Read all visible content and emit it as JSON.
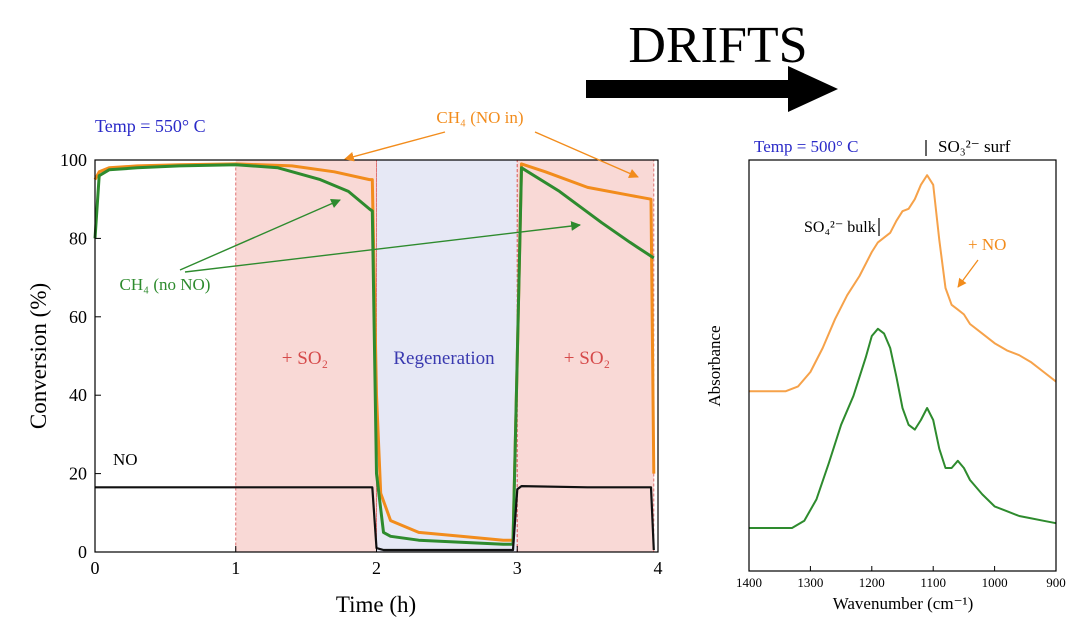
{
  "header": {
    "label": "DRIFTS"
  },
  "chart_data": [
    {
      "type": "line",
      "annotation_temp": "Temp = 550° C",
      "xlabel": "Time (h)",
      "ylabel": "Conversion (%)",
      "xlim": [
        0,
        4
      ],
      "ylim": [
        0,
        100
      ],
      "xticks": [
        "0",
        "1",
        "2",
        "3",
        "4"
      ],
      "yticks": [
        "0",
        "20",
        "40",
        "60",
        "80",
        "100"
      ],
      "regions": [
        {
          "label": "+ SO₂",
          "x": [
            1,
            2
          ],
          "color": "#f9d9d6"
        },
        {
          "label": "Regeneration",
          "x": [
            2,
            3
          ],
          "color": "#e6e8f5"
        },
        {
          "label": "+ SO₂",
          "x": [
            3,
            3.97
          ],
          "color": "#f9d9d6"
        }
      ],
      "annotations": [
        "CH₄ (NO in)",
        "CH₄ (no NO)",
        "NO"
      ],
      "series": [
        {
          "name": "CH₄ (NO in)",
          "color": "#f28c1c",
          "x": [
            0,
            0.03,
            0.1,
            0.3,
            0.6,
            1.0,
            1.4,
            1.7,
            1.95,
            1.97,
            2.0,
            2.03,
            2.1,
            2.3,
            2.6,
            2.9,
            2.97,
            3.0,
            3.03,
            3.2,
            3.5,
            3.8,
            3.95,
            3.97
          ],
          "y": [
            95,
            97,
            98,
            98.5,
            98.8,
            99,
            98.5,
            97,
            95,
            95,
            40,
            15,
            8,
            5,
            4,
            3,
            3,
            50,
            99,
            97,
            93,
            91,
            90,
            20
          ]
        },
        {
          "name": "CH₄ (no NO)",
          "color": "#2e8b2e",
          "x": [
            0,
            0.03,
            0.1,
            0.3,
            0.6,
            1.0,
            1.3,
            1.6,
            1.8,
            1.95,
            1.97,
            2.0,
            2.05,
            2.1,
            2.3,
            2.6,
            2.9,
            2.97,
            3.0,
            3.03,
            3.3,
            3.6,
            3.8,
            3.97
          ],
          "y": [
            80,
            96,
            97.5,
            98,
            98.5,
            98.8,
            98,
            95,
            92,
            87.5,
            87,
            20,
            5,
            4,
            3,
            2.5,
            2,
            2,
            50,
            98,
            92,
            84,
            79,
            75
          ]
        },
        {
          "name": "NO",
          "color": "#111111",
          "x": [
            0,
            0.5,
            1.0,
            1.5,
            1.95,
            1.97,
            2.0,
            2.05,
            2.5,
            2.97,
            3.0,
            3.03,
            3.5,
            3.95,
            3.97
          ],
          "y": [
            16.5,
            16.5,
            16.5,
            16.5,
            16.5,
            16.5,
            1,
            0.5,
            0.5,
            0.5,
            16,
            16.8,
            16.5,
            16.5,
            0.5
          ]
        }
      ]
    },
    {
      "type": "line",
      "annotation_temp": "Temp = 500° C",
      "xlabel": "Wavenumber (cm⁻¹)",
      "ylabel": "Absorbance",
      "xlim": [
        1400,
        900
      ],
      "xticks": [
        "1400",
        "1300",
        "1200",
        "1100",
        "1000",
        "900"
      ],
      "peak_labels": [
        {
          "label": "SO₃²⁻ surf",
          "x": 1100
        },
        {
          "label": "SO₄²⁻ bulk",
          "x": 1175
        }
      ],
      "annotations": [
        "+ NO"
      ],
      "series": [
        {
          "name": "+ NO",
          "color": "#f6a24a",
          "x": [
            1400,
            1340,
            1320,
            1300,
            1280,
            1260,
            1240,
            1220,
            1200,
            1190,
            1180,
            1170,
            1160,
            1150,
            1140,
            1130,
            1120,
            1110,
            1100,
            1090,
            1080,
            1070,
            1060,
            1050,
            1040,
            1020,
            1000,
            980,
            960,
            940,
            920,
            900
          ],
          "y": [
            0.62,
            0.62,
            0.64,
            0.7,
            0.8,
            0.92,
            1.02,
            1.1,
            1.2,
            1.24,
            1.26,
            1.28,
            1.33,
            1.37,
            1.38,
            1.42,
            1.48,
            1.52,
            1.48,
            1.25,
            1.05,
            0.98,
            0.96,
            0.94,
            0.9,
            0.86,
            0.82,
            0.79,
            0.77,
            0.74,
            0.7,
            0.66
          ]
        },
        {
          "name": "",
          "color": "#2e8b2e",
          "x": [
            1400,
            1330,
            1310,
            1290,
            1270,
            1250,
            1230,
            1210,
            1200,
            1190,
            1180,
            1170,
            1160,
            1150,
            1140,
            1130,
            1120,
            1110,
            1100,
            1090,
            1080,
            1070,
            1060,
            1050,
            1040,
            1020,
            1000,
            980,
            960,
            940,
            920,
            900
          ],
          "y": [
            0.05,
            0.05,
            0.08,
            0.17,
            0.32,
            0.48,
            0.6,
            0.76,
            0.85,
            0.88,
            0.86,
            0.8,
            0.68,
            0.55,
            0.48,
            0.46,
            0.5,
            0.55,
            0.5,
            0.38,
            0.3,
            0.3,
            0.33,
            0.3,
            0.25,
            0.19,
            0.14,
            0.12,
            0.1,
            0.09,
            0.08,
            0.07
          ]
        }
      ]
    }
  ]
}
